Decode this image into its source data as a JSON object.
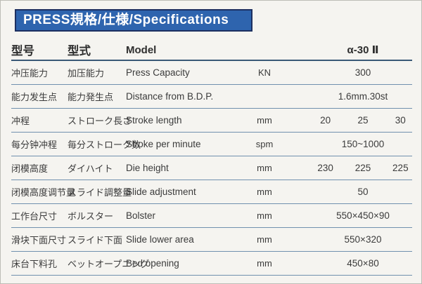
{
  "banner": {
    "title": "PRESS規格/仕様/Specifications",
    "bg_color": "#2e64ae",
    "border_color": "#1d3060",
    "text_color": "#ffffff"
  },
  "table": {
    "header": {
      "cn": "型号",
      "jp": "型式",
      "en": "Model",
      "unit": "",
      "value": "α-30 Ⅱ"
    },
    "rows": [
      {
        "cn": "冲压能力",
        "jp": "加压能力",
        "en": "Press Capacity",
        "unit": "KN",
        "values": [
          "300"
        ]
      },
      {
        "cn": "能力发生点",
        "jp": "能力発生点",
        "en": "Distance from B.D.P.",
        "unit": "",
        "values": [
          "1.6mm.30st"
        ]
      },
      {
        "cn": "冲程",
        "jp": "ストローク長さ",
        "en": "Stroke length",
        "unit": "mm",
        "values": [
          "20",
          "25",
          "30"
        ]
      },
      {
        "cn": "每分钟冲程",
        "jp": "毎分ストローク数",
        "en": "Stroke per minute",
        "unit": "spm",
        "values": [
          "150~1000"
        ]
      },
      {
        "cn": "闭模高度",
        "jp": "ダイハイト",
        "en": "Die height",
        "unit": "mm",
        "values": [
          "230",
          "225",
          "225"
        ]
      },
      {
        "cn": "闭模高度调节量",
        "jp": "スライド調整量",
        "en": "Slide adjustment",
        "unit": "mm",
        "values": [
          "50"
        ]
      },
      {
        "cn": "工作台尺寸",
        "jp": "ボルスター",
        "en": "Bolster",
        "unit": "mm",
        "values": [
          "550×450×90"
        ]
      },
      {
        "cn": "滑块下面尺寸",
        "jp": "スライド下面",
        "en": "Slide lower area",
        "unit": "mm",
        "values": [
          "550×320"
        ]
      },
      {
        "cn": "床台下料孔",
        "jp": "ベットオープニング",
        "en": "Bed opening",
        "unit": "mm",
        "values": [
          "450×80"
        ]
      }
    ],
    "rule_colors": {
      "header_rule": "#395977",
      "row_rule": "#7090ae"
    }
  }
}
